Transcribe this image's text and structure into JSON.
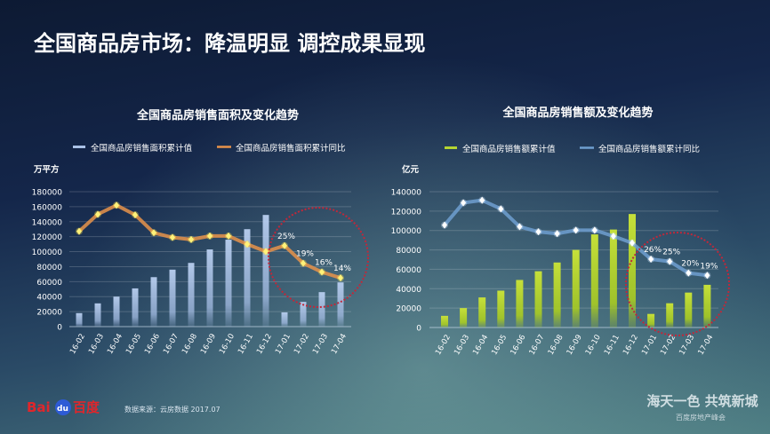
{
  "slide_title": "全国商品房市场：降温明显  调控成果显现",
  "source": "数据来源：云房数据 2017.07",
  "logo": "Bai du 百度",
  "slogan": "海天一色 共筑新城",
  "slogan_sub": "百度房地产峰会",
  "chart_data": [
    {
      "type": "bar",
      "title": "全国商品房销售面积及变化趋势",
      "ylabel": "万平方",
      "ylim": [
        0,
        180000
      ],
      "yticks": [
        0,
        20000,
        40000,
        60000,
        80000,
        100000,
        120000,
        140000,
        160000,
        180000
      ],
      "y2lim": [
        -2.6,
        43.4
      ],
      "grid": true,
      "legend": "top",
      "categories": [
        "16-02",
        "16-03",
        "16-04",
        "16-05",
        "16-06",
        "16-07",
        "16-08",
        "16-09",
        "16-10",
        "16-11",
        "16-12",
        "17-01",
        "17-02",
        "17-03",
        "17-04"
      ],
      "series": [
        {
          "name": "全国商品房销售面积累计值",
          "type": "bar",
          "color": "#a9c1e6",
          "values": [
            18000,
            31000,
            40000,
            51000,
            66000,
            76000,
            85000,
            103000,
            116000,
            130000,
            149000,
            19000,
            33000,
            46000,
            59000
          ]
        },
        {
          "name": "全国商品房销售面积累计同比",
          "type": "line",
          "unit": "%",
          "color": "#e8934a",
          "marker_color": "#fff27a",
          "values": [
            29.9,
            35.7,
            38.8,
            35.5,
            29.4,
            27.8,
            27.1,
            28.3,
            28.3,
            25.5,
            23,
            25,
            19,
            16,
            14
          ],
          "labels": {
            "11": "25%",
            "12": "19%",
            "13": "16%",
            "14": "14%"
          }
        }
      ],
      "highlight": "17-01 至 17-04"
    },
    {
      "type": "bar",
      "title": "全国商品房销售额及变化趋势",
      "ylabel": "亿元",
      "ylim": [
        0,
        140000
      ],
      "yticks": [
        0,
        20000,
        40000,
        60000,
        80000,
        100000,
        120000,
        140000
      ],
      "y2lim": [
        -3.5,
        55.1
      ],
      "grid": true,
      "legend": "top",
      "categories": [
        "16-02",
        "16-03",
        "16-04",
        "16-05",
        "16-06",
        "16-07",
        "16-08",
        "16-09",
        "16-10",
        "16-11",
        "16-12",
        "17-01",
        "17-02",
        "17-03",
        "17-04"
      ],
      "series": [
        {
          "name": "全国商品房销售额累计值",
          "type": "bar",
          "color": "#b5d531",
          "values": [
            12000,
            20000,
            31000,
            38000,
            49000,
            58000,
            67000,
            80000,
            96000,
            101000,
            117000,
            14000,
            25000,
            36000,
            44000
          ]
        },
        {
          "name": "全国商品房销售额累计同比",
          "type": "line",
          "unit": "%",
          "color": "#6f9fd0",
          "marker_color": "#ffffff",
          "values": [
            40.7,
            50.3,
            51.4,
            47.7,
            40,
            37.8,
            37,
            38.5,
            38.5,
            35.9,
            33,
            26,
            25,
            20,
            19
          ],
          "labels": {
            "11": "26%",
            "12": "25%",
            "13": "20%",
            "14": "19%"
          }
        }
      ],
      "highlight": "17-01 至 17-04"
    }
  ]
}
